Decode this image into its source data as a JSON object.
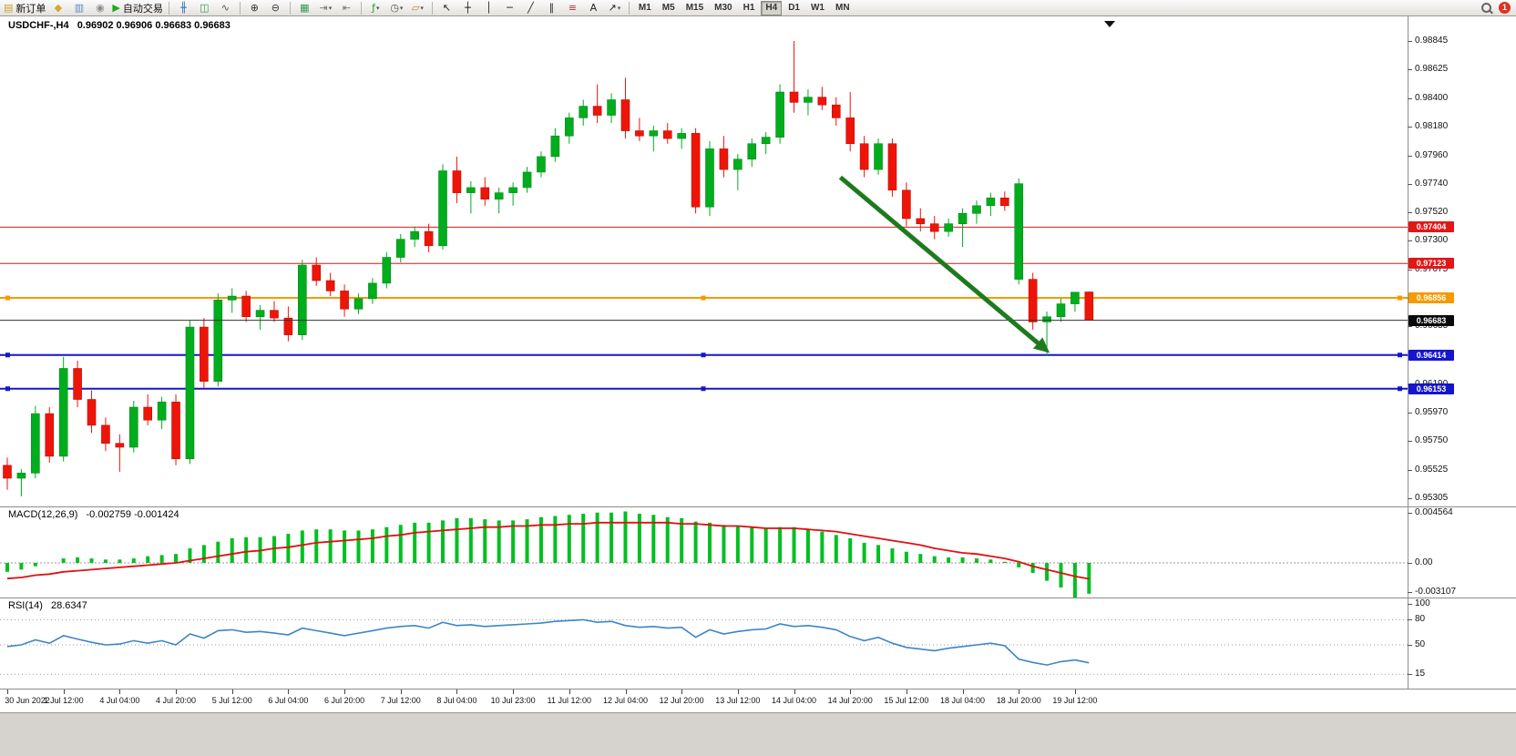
{
  "toolbar": {
    "new_order": {
      "label": "新订单",
      "icon": "new-order-icon",
      "glyph": "▤",
      "color": "#cfa22e"
    },
    "left_icons": [
      {
        "name": "symbols-icon",
        "glyph": "◆",
        "color": "#d8a727"
      },
      {
        "name": "market-watch-icon",
        "glyph": "▥",
        "color": "#5b8bc0"
      },
      {
        "name": "sound-on-icon",
        "glyph": "◉",
        "color": "#8a8a8a"
      }
    ],
    "auto_trading": {
      "label": "自动交易",
      "icon": "auto-trading-play-icon",
      "glyph": "▶",
      "color": "#1faa1f"
    },
    "chart_type_icons": [
      {
        "name": "ohlc-bars-icon",
        "glyph": "╫",
        "color": "#2f6fb4"
      },
      {
        "name": "candlestick-chart-icon",
        "glyph": "◫",
        "color": "#2f9e4f"
      },
      {
        "name": "line-chart-icon",
        "glyph": "∿",
        "color": "#555555"
      }
    ],
    "zoom_icons": [
      {
        "name": "zoom-in-icon",
        "glyph": "⊕",
        "color": "#333333"
      },
      {
        "name": "zoom-out-icon",
        "glyph": "⊖",
        "color": "#333333"
      }
    ],
    "window_icons": [
      {
        "name": "tile-windows-icon",
        "glyph": "▦",
        "color": "#2f9e4f"
      },
      {
        "name": "auto-scroll-icon",
        "glyph": "⇥",
        "color": "#777777",
        "dropdown": true
      },
      {
        "name": "chart-shift-icon",
        "glyph": "⇤",
        "color": "#777777"
      }
    ],
    "insert_icons": [
      {
        "name": "indicators-icon",
        "glyph": "ƒ",
        "color": "#1faa1f",
        "dropdown": true
      },
      {
        "name": "periods-icon",
        "glyph": "◷",
        "color": "#555555",
        "dropdown": true
      },
      {
        "name": "templates-icon",
        "glyph": "▱",
        "color": "#b58a2a",
        "dropdown": true
      }
    ],
    "draw_icons": [
      {
        "name": "cursor-icon",
        "glyph": "↖",
        "color": "#222222"
      },
      {
        "name": "crosshair-icon",
        "glyph": "┼",
        "color": "#222222"
      },
      {
        "name": "vertical-line-icon",
        "glyph": "│",
        "color": "#222222"
      },
      {
        "name": "horizontal-line-icon",
        "glyph": "─",
        "color": "#222222"
      },
      {
        "name": "trendline-icon",
        "glyph": "╱",
        "color": "#222222"
      },
      {
        "name": "equidistant-channel-icon",
        "glyph": "∥",
        "color": "#222222"
      },
      {
        "name": "fibonacci-icon",
        "glyph": "≡",
        "color": "#b03030"
      },
      {
        "name": "text-label-icon",
        "glyph": "A",
        "color": "#222222"
      },
      {
        "name": "arrows-icon",
        "glyph": "↗",
        "color": "#222222",
        "dropdown": true
      }
    ],
    "timeframes": [
      "M1",
      "M5",
      "M15",
      "M30",
      "H1",
      "H4",
      "D1",
      "W1",
      "MN"
    ],
    "active_timeframe": "H4",
    "notification_count": "1"
  },
  "chart": {
    "symbol_title": "USDCHF-,H4",
    "ohlc_values": "0.96902 0.96906 0.96683 0.96683"
  },
  "colors": {
    "up": "#00ad1d",
    "up_border": "#008a15",
    "down": "#ee1508",
    "down_border": "#b80f06",
    "macd_hist": "#00c020",
    "macd_signal": "#e01010",
    "rsi_line": "#3d85c8",
    "arrow": "#1e7a1e",
    "current_price_line": "#333333",
    "red_level": "#e21717",
    "orange_level": "#f59a00",
    "blue_level": "#1515cd",
    "current_tag_bg": "#0a0a0a"
  },
  "chart_data": [
    {
      "type": "candlestick",
      "symbol": "USDCHF-",
      "timeframe": "H4",
      "ohlc_header": {
        "open": "0.96902",
        "high": "0.96906",
        "low": "0.96683",
        "close": "0.96683"
      },
      "ylim": [
        0.95305,
        0.98845
      ],
      "y_ticks": [
        "0.98845",
        "0.98625",
        "0.98400",
        "0.98180",
        "0.97960",
        "0.97740",
        "0.97520",
        "0.97300",
        "0.97075",
        "0.96855",
        "0.96635",
        "0.96410",
        "0.96190",
        "0.95970",
        "0.95750",
        "0.95525",
        "0.95305"
      ],
      "x_labels": [
        {
          "i": 0,
          "t": "30 Jun 2022"
        },
        {
          "i": 4,
          "t": "1 Jul 12:00"
        },
        {
          "i": 8,
          "t": "4 Jul 04:00"
        },
        {
          "i": 12,
          "t": "4 Jul 20:00"
        },
        {
          "i": 16,
          "t": "5 Jul 12:00"
        },
        {
          "i": 20,
          "t": "6 Jul 04:00"
        },
        {
          "i": 24,
          "t": "6 Jul 20:00"
        },
        {
          "i": 28,
          "t": "7 Jul 12:00"
        },
        {
          "i": 32,
          "t": "8 Jul 04:00"
        },
        {
          "i": 36,
          "t": "10 Jul 23:00"
        },
        {
          "i": 40,
          "t": "11 Jul 12:00"
        },
        {
          "i": 44,
          "t": "12 Jul 04:00"
        },
        {
          "i": 48,
          "t": "12 Jul 20:00"
        },
        {
          "i": 52,
          "t": "13 Jul 12:00"
        },
        {
          "i": 56,
          "t": "14 Jul 04:00"
        },
        {
          "i": 60,
          "t": "14 Jul 20:00"
        },
        {
          "i": 64,
          "t": "15 Jul 12:00"
        },
        {
          "i": 68,
          "t": "18 Jul 04:00"
        },
        {
          "i": 72,
          "t": "18 Jul 20:00"
        },
        {
          "i": 76,
          "t": "19 Jul 12:00"
        }
      ],
      "hlines": [
        {
          "price": 0.97404,
          "label": "0.97404",
          "color": "#e21717",
          "width": 1,
          "handles": false
        },
        {
          "price": 0.97123,
          "label": "0.97123",
          "color": "#e21717",
          "width": 1,
          "handles": false
        },
        {
          "price": 0.96856,
          "label": "0.96856",
          "color": "#f59a00",
          "width": 2,
          "handles": true
        },
        {
          "price": 0.96414,
          "label": "0.96414",
          "color": "#1515cd",
          "width": 2,
          "handles": true
        },
        {
          "price": 0.96153,
          "label": "0.96153",
          "color": "#1515cd",
          "width": 2,
          "handles": true
        }
      ],
      "current_price": {
        "price": 0.96683,
        "label": "0.96683"
      },
      "arrow": {
        "from_index": 59.3,
        "from_price": 0.9779,
        "to_index": 74.2,
        "to_price": 0.9643
      },
      "candles": [
        [
          0.9556,
          0.9562,
          0.9537,
          0.9546
        ],
        [
          0.9546,
          0.9553,
          0.9532,
          0.955
        ],
        [
          0.955,
          0.9602,
          0.9546,
          0.9596
        ],
        [
          0.9596,
          0.9601,
          0.9558,
          0.9563
        ],
        [
          0.9563,
          0.964,
          0.9559,
          0.9631
        ],
        [
          0.9631,
          0.9637,
          0.9601,
          0.9607
        ],
        [
          0.9607,
          0.9614,
          0.9581,
          0.9587
        ],
        [
          0.9587,
          0.9593,
          0.9567,
          0.9573
        ],
        [
          0.9573,
          0.958,
          0.9551,
          0.957
        ],
        [
          0.957,
          0.9606,
          0.9566,
          0.9601
        ],
        [
          0.9601,
          0.9611,
          0.9587,
          0.9591
        ],
        [
          0.9591,
          0.9609,
          0.9584,
          0.9605
        ],
        [
          0.9605,
          0.9611,
          0.9556,
          0.9561
        ],
        [
          0.9561,
          0.9668,
          0.9557,
          0.9663
        ],
        [
          0.9663,
          0.967,
          0.9616,
          0.9621
        ],
        [
          0.9621,
          0.9689,
          0.9617,
          0.9684
        ],
        [
          0.9684,
          0.9693,
          0.9674,
          0.9687
        ],
        [
          0.9687,
          0.9691,
          0.9667,
          0.9671
        ],
        [
          0.9671,
          0.968,
          0.9661,
          0.9676
        ],
        [
          0.9676,
          0.9683,
          0.9667,
          0.967
        ],
        [
          0.967,
          0.9679,
          0.9652,
          0.9657
        ],
        [
          0.9657,
          0.9715,
          0.9653,
          0.9711
        ],
        [
          0.9711,
          0.9717,
          0.9695,
          0.9699
        ],
        [
          0.9699,
          0.9705,
          0.9687,
          0.9691
        ],
        [
          0.9691,
          0.9696,
          0.9671,
          0.9677
        ],
        [
          0.9677,
          0.9689,
          0.9673,
          0.9685
        ],
        [
          0.9685,
          0.9701,
          0.9681,
          0.9697
        ],
        [
          0.9697,
          0.9721,
          0.9693,
          0.9717
        ],
        [
          0.9717,
          0.9735,
          0.9713,
          0.9731
        ],
        [
          0.9731,
          0.9741,
          0.9725,
          0.9737
        ],
        [
          0.9737,
          0.9743,
          0.9721,
          0.9726
        ],
        [
          0.9726,
          0.9789,
          0.9723,
          0.9784
        ],
        [
          0.9784,
          0.9795,
          0.9759,
          0.9767
        ],
        [
          0.9767,
          0.9776,
          0.9751,
          0.9771
        ],
        [
          0.9771,
          0.9779,
          0.9757,
          0.9762
        ],
        [
          0.9762,
          0.9771,
          0.9751,
          0.9767
        ],
        [
          0.9767,
          0.9775,
          0.9757,
          0.9771
        ],
        [
          0.9771,
          0.9787,
          0.9767,
          0.9783
        ],
        [
          0.9783,
          0.9799,
          0.9779,
          0.9795
        ],
        [
          0.9795,
          0.9817,
          0.9791,
          0.9811
        ],
        [
          0.9811,
          0.9829,
          0.9805,
          0.9825
        ],
        [
          0.9825,
          0.9839,
          0.9819,
          0.9834
        ],
        [
          0.9834,
          0.9851,
          0.9821,
          0.9827
        ],
        [
          0.9827,
          0.9844,
          0.9821,
          0.9839
        ],
        [
          0.9839,
          0.9856,
          0.9809,
          0.9815
        ],
        [
          0.9815,
          0.9825,
          0.9807,
          0.9811
        ],
        [
          0.9811,
          0.9819,
          0.9799,
          0.9815
        ],
        [
          0.9815,
          0.9821,
          0.9805,
          0.9809
        ],
        [
          0.9809,
          0.9817,
          0.9801,
          0.9813
        ],
        [
          0.9813,
          0.9817,
          0.9751,
          0.9756
        ],
        [
          0.9756,
          0.9807,
          0.9749,
          0.9801
        ],
        [
          0.9801,
          0.9811,
          0.9779,
          0.9785
        ],
        [
          0.9785,
          0.9797,
          0.9769,
          0.9793
        ],
        [
          0.9793,
          0.9809,
          0.9787,
          0.9805
        ],
        [
          0.9805,
          0.9814,
          0.9797,
          0.981
        ],
        [
          0.981,
          0.9851,
          0.9805,
          0.9845
        ],
        [
          0.9845,
          0.98845,
          0.9829,
          0.9837
        ],
        [
          0.9837,
          0.9847,
          0.9827,
          0.9841
        ],
        [
          0.9841,
          0.9849,
          0.9831,
          0.9835
        ],
        [
          0.9835,
          0.9841,
          0.9819,
          0.9825
        ],
        [
          0.9825,
          0.9845,
          0.9799,
          0.9805
        ],
        [
          0.9805,
          0.9811,
          0.9779,
          0.9785
        ],
        [
          0.9785,
          0.9809,
          0.9781,
          0.9805
        ],
        [
          0.9805,
          0.9809,
          0.9764,
          0.9769
        ],
        [
          0.9769,
          0.9775,
          0.9741,
          0.9747
        ],
        [
          0.9747,
          0.9755,
          0.9737,
          0.9743
        ],
        [
          0.9743,
          0.9749,
          0.9731,
          0.9737
        ],
        [
          0.9737,
          0.9747,
          0.9733,
          0.9743
        ],
        [
          0.9743,
          0.9755,
          0.9725,
          0.9751
        ],
        [
          0.9751,
          0.9761,
          0.9743,
          0.9757
        ],
        [
          0.9757,
          0.9767,
          0.9749,
          0.9763
        ],
        [
          0.9763,
          0.9768,
          0.9753,
          0.9757
        ],
        [
          0.97,
          0.9778,
          0.9696,
          0.9774
        ],
        [
          0.97,
          0.9705,
          0.9661,
          0.9667
        ],
        [
          0.9667,
          0.9675,
          0.9641,
          0.9671
        ],
        [
          0.9671,
          0.9685,
          0.9667,
          0.9681
        ],
        [
          0.9681,
          0.969,
          0.9675,
          0.969
        ],
        [
          0.96902,
          0.96906,
          0.96683,
          0.96683
        ]
      ]
    },
    {
      "type": "bar",
      "name": "MACD(12,26,9)",
      "values_label": "-0.002759 -0.001424",
      "ylim": [
        -0.003107,
        0.004564
      ],
      "y_ticks": [
        {
          "v": 0.004564,
          "t": "0.004564"
        },
        {
          "v": 0.0,
          "t": "0.00"
        },
        {
          "v": -0.003107,
          "t": "-0.003107"
        }
      ],
      "histogram": [
        -0.0008,
        -0.0006,
        -0.0003,
        0.0,
        0.0004,
        0.0005,
        0.0004,
        0.0003,
        0.0003,
        0.0004,
        0.0006,
        0.0007,
        0.0008,
        0.0013,
        0.0016,
        0.0019,
        0.0022,
        0.0023,
        0.0023,
        0.0024,
        0.0026,
        0.0029,
        0.003,
        0.003,
        0.0029,
        0.0029,
        0.003,
        0.0032,
        0.0034,
        0.0036,
        0.0036,
        0.0038,
        0.004,
        0.004,
        0.0039,
        0.0038,
        0.0038,
        0.0039,
        0.0041,
        0.0042,
        0.0043,
        0.0044,
        0.0045,
        0.0045,
        0.0046,
        0.0044,
        0.0043,
        0.0041,
        0.004,
        0.0037,
        0.0036,
        0.0034,
        0.0033,
        0.0032,
        0.0031,
        0.0032,
        0.0032,
        0.003,
        0.0028,
        0.0025,
        0.0022,
        0.0018,
        0.0016,
        0.0013,
        0.001,
        0.0008,
        0.0006,
        0.0005,
        0.0005,
        0.0004,
        0.0003,
        0.0001,
        -0.0004,
        -0.0009,
        -0.0016,
        -0.0022,
        -0.003107,
        -0.002759
      ],
      "signal": [
        -0.0014,
        -0.0013,
        -0.0011,
        -0.001,
        -0.0008,
        -0.0007,
        -0.0006,
        -0.0005,
        -0.0004,
        -0.0003,
        -0.0002,
        -0.0001,
        0.0,
        0.0002,
        0.0004,
        0.0006,
        0.0008,
        0.001,
        0.0011,
        0.0013,
        0.0014,
        0.0016,
        0.0018,
        0.0019,
        0.002,
        0.0021,
        0.0022,
        0.0024,
        0.0025,
        0.0027,
        0.0028,
        0.0029,
        0.003,
        0.0031,
        0.0032,
        0.0032,
        0.0033,
        0.0033,
        0.0034,
        0.0034,
        0.0035,
        0.0035,
        0.0036,
        0.0036,
        0.0036,
        0.0036,
        0.0036,
        0.0036,
        0.0035,
        0.0035,
        0.0034,
        0.0033,
        0.0033,
        0.0032,
        0.0031,
        0.0031,
        0.0031,
        0.003,
        0.0029,
        0.0028,
        0.0026,
        0.0024,
        0.0022,
        0.002,
        0.0018,
        0.0016,
        0.0013,
        0.0011,
        0.0009,
        0.0008,
        0.0006,
        0.0004,
        0.0001,
        -0.0003,
        -0.0006,
        -0.0009,
        -0.0012,
        -0.001424
      ]
    },
    {
      "type": "line",
      "name": "RSI(14)",
      "value_label": "28.6347",
      "ylim": [
        0,
        100
      ],
      "levels": [
        80,
        50,
        15
      ],
      "y_ticks": [
        {
          "v": 100,
          "t": "100"
        },
        {
          "v": 80,
          "t": "80"
        },
        {
          "v": 50,
          "t": "50"
        },
        {
          "v": 15,
          "t": "15"
        }
      ],
      "values": [
        48,
        50,
        56,
        52,
        61,
        57,
        53,
        50,
        51,
        55,
        52,
        55,
        50,
        63,
        58,
        67,
        68,
        65,
        66,
        64,
        62,
        70,
        67,
        64,
        61,
        64,
        67,
        70,
        72,
        73,
        70,
        77,
        73,
        74,
        72,
        73,
        74,
        75,
        76,
        78,
        79,
        80,
        77,
        78,
        73,
        71,
        72,
        70,
        71,
        59,
        68,
        63,
        66,
        68,
        69,
        75,
        72,
        73,
        71,
        68,
        60,
        55,
        59,
        52,
        47,
        45,
        43,
        46,
        48,
        50,
        52,
        49,
        33,
        29,
        26,
        30,
        32,
        28.6347
      ]
    }
  ]
}
